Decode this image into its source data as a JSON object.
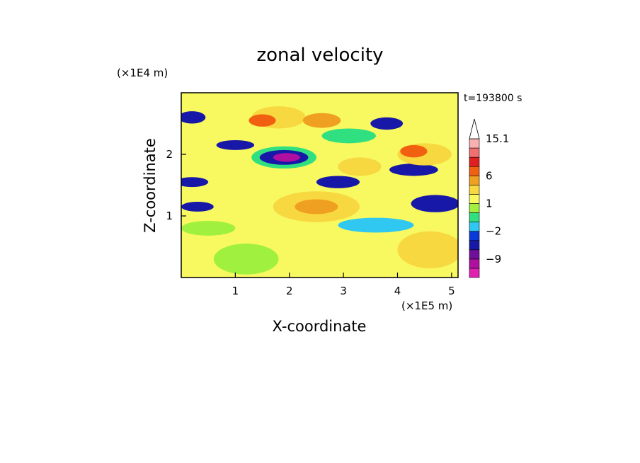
{
  "chart_data": {
    "type": "heatmap",
    "title": "zonal velocity",
    "xlabel": "X-coordinate",
    "ylabel": "Z-coordinate",
    "x_unit": "(×1E5 m)",
    "y_unit": "(×1E4 m)",
    "time_label": "t=193800 s",
    "xlim": [
      0,
      5.12
    ],
    "ylim": [
      0,
      3.0
    ],
    "x_ticks": [
      1,
      2,
      3,
      4,
      5
    ],
    "y_ticks": [
      1,
      2
    ],
    "colorbar": {
      "levels": [
        -15,
        -12,
        -9,
        -6,
        -4,
        -2,
        -1,
        0,
        1,
        2,
        4,
        6,
        9,
        12,
        15.1
      ],
      "colors": [
        "#e020b0",
        "#b010a0",
        "#70109a",
        "#1818a8",
        "#0a3ad8",
        "#30c8f0",
        "#30e080",
        "#a0f040",
        "#f8f860",
        "#f8d840",
        "#f0a020",
        "#f06010",
        "#e02020",
        "#f07070",
        "#f8b0b0"
      ],
      "extend_max_color": "#ffffff",
      "labels": [
        {
          "value": 15.1,
          "text": "15.1"
        },
        {
          "value": 6,
          "text": "6"
        },
        {
          "value": 1,
          "text": "1"
        },
        {
          "value": -2,
          "text": "−2"
        },
        {
          "value": -9,
          "text": "−9"
        }
      ]
    },
    "field_ellipses": [
      {
        "x": 1.8,
        "z": 2.6,
        "rx": 0.5,
        "rz": 0.18,
        "v": 2
      },
      {
        "x": 1.5,
        "z": 2.55,
        "rx": 0.25,
        "rz": 0.1,
        "v": 6
      },
      {
        "x": 2.6,
        "z": 2.55,
        "rx": 0.35,
        "rz": 0.12,
        "v": 5
      },
      {
        "x": 1.9,
        "z": 1.95,
        "rx": 0.6,
        "rz": 0.18,
        "v": -1
      },
      {
        "x": 1.9,
        "z": 1.95,
        "rx": 0.45,
        "rz": 0.12,
        "v": -5
      },
      {
        "x": 1.95,
        "z": 1.95,
        "rx": 0.25,
        "rz": 0.07,
        "v": -10
      },
      {
        "x": 1.0,
        "z": 2.15,
        "rx": 0.35,
        "rz": 0.08,
        "v": -5
      },
      {
        "x": 0.2,
        "z": 2.6,
        "rx": 0.25,
        "rz": 0.1,
        "v": -5
      },
      {
        "x": 2.9,
        "z": 1.55,
        "rx": 0.4,
        "rz": 0.1,
        "v": -5
      },
      {
        "x": 4.3,
        "z": 1.75,
        "rx": 0.45,
        "rz": 0.1,
        "v": -5
      },
      {
        "x": 4.7,
        "z": 1.2,
        "rx": 0.45,
        "rz": 0.14,
        "v": -5
      },
      {
        "x": 0.3,
        "z": 1.15,
        "rx": 0.3,
        "rz": 0.08,
        "v": -5
      },
      {
        "x": 0.2,
        "z": 1.55,
        "rx": 0.3,
        "rz": 0.08,
        "v": -5
      },
      {
        "x": 2.5,
        "z": 1.15,
        "rx": 0.8,
        "rz": 0.25,
        "v": 3
      },
      {
        "x": 2.5,
        "z": 1.15,
        "rx": 0.4,
        "rz": 0.12,
        "v": 5
      },
      {
        "x": 4.5,
        "z": 2.0,
        "rx": 0.5,
        "rz": 0.18,
        "v": 3
      },
      {
        "x": 4.3,
        "z": 2.05,
        "rx": 0.25,
        "rz": 0.1,
        "v": 6
      },
      {
        "x": 3.3,
        "z": 1.8,
        "rx": 0.4,
        "rz": 0.15,
        "v": 3
      },
      {
        "x": 4.6,
        "z": 0.45,
        "rx": 0.6,
        "rz": 0.3,
        "v": 2
      },
      {
        "x": 1.2,
        "z": 0.3,
        "rx": 0.6,
        "rz": 0.25,
        "v": 0.5
      },
      {
        "x": 3.6,
        "z": 0.85,
        "rx": 0.7,
        "rz": 0.12,
        "v": -1.5
      },
      {
        "x": 0.5,
        "z": 0.8,
        "rx": 0.5,
        "rz": 0.12,
        "v": 0.5
      },
      {
        "x": 3.8,
        "z": 2.5,
        "rx": 0.3,
        "rz": 0.1,
        "v": -5
      },
      {
        "x": 3.1,
        "z": 2.3,
        "rx": 0.5,
        "rz": 0.12,
        "v": -1
      }
    ]
  }
}
